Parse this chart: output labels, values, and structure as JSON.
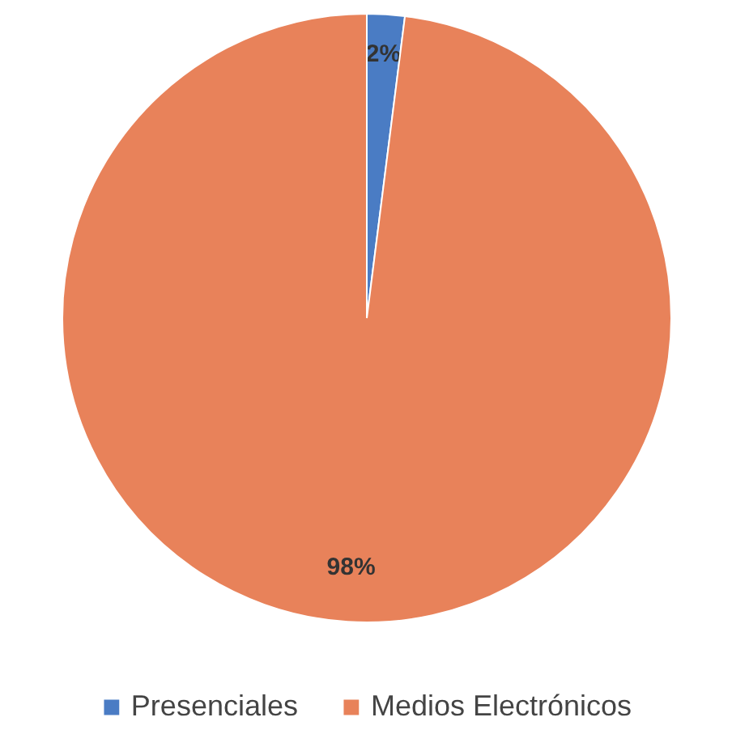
{
  "chart_data": {
    "type": "pie",
    "categories": [
      "Presenciales",
      "Medios Electrónicos"
    ],
    "values": [
      2,
      98
    ],
    "colors": [
      "#4a7cc4",
      "#e8825a"
    ],
    "value_labels": [
      "2%",
      "98%"
    ],
    "legend": "bottom"
  }
}
